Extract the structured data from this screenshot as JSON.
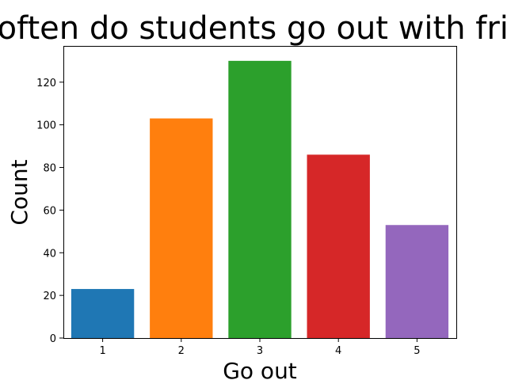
{
  "chart_data": {
    "type": "bar",
    "title": "How often do students go out with friends?",
    "xlabel": "Go out",
    "ylabel": "Count",
    "categories": [
      "1",
      "2",
      "3",
      "4",
      "5"
    ],
    "values": [
      23,
      103,
      130,
      86,
      53
    ],
    "colors": [
      "#1f77b4",
      "#ff7f0e",
      "#2ca02c",
      "#d62728",
      "#9467bd"
    ],
    "ylim": [
      0,
      137
    ],
    "yticks": [
      0,
      20,
      40,
      60,
      80,
      100,
      120
    ],
    "grid": false,
    "legend": "none"
  }
}
